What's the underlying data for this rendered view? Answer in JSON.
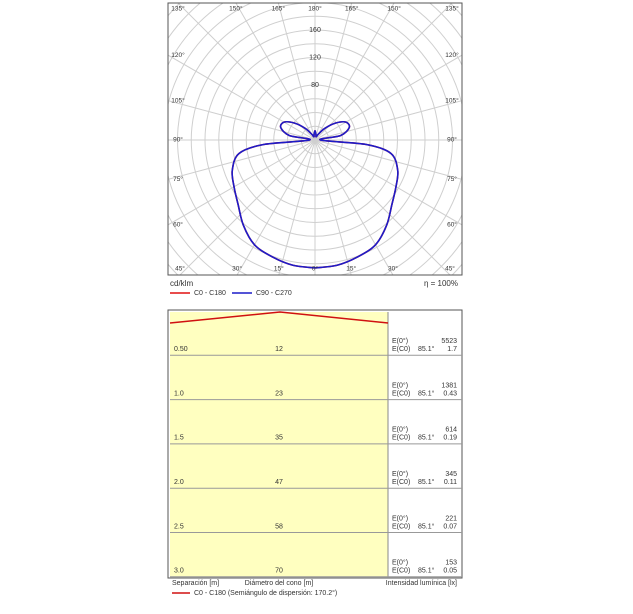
{
  "chart_data": {
    "type": "polar",
    "unit_label": "cd/klm",
    "efficiency": "η = 100%",
    "angles": [
      0,
      10,
      20,
      30,
      40,
      50,
      60,
      70,
      80,
      85,
      90,
      100,
      110,
      120,
      130,
      140,
      150,
      160,
      170,
      180
    ],
    "angle_ticks": [
      {
        "value": 0,
        "label": "0°"
      },
      {
        "value": 15,
        "label": "15°"
      },
      {
        "value": 30,
        "label": "30°"
      },
      {
        "value": 45,
        "label": "45°"
      },
      {
        "value": 60,
        "label": "60°"
      },
      {
        "value": 75,
        "label": "75°"
      },
      {
        "value": 90,
        "label": "90°"
      },
      {
        "value": 105,
        "label": "105°"
      },
      {
        "value": 120,
        "label": "120°"
      },
      {
        "value": 135,
        "label": "135°"
      },
      {
        "value": 150,
        "label": "150°"
      },
      {
        "value": 165,
        "label": "165°"
      },
      {
        "value": 180,
        "label": "180°"
      }
    ],
    "rlim": [
      0,
      200
    ],
    "rticks": [
      80,
      120,
      160
    ],
    "rgrid": [
      20,
      40,
      60,
      80,
      100,
      120,
      140,
      160,
      180,
      200,
      220,
      240,
      260,
      280
    ],
    "series": [
      {
        "name": "C0 - C180",
        "color": "#e01010",
        "values": [
          186,
          185,
          181,
          176,
          162,
          146,
          136,
          128,
          112,
          75,
          8,
          38,
          53,
          52,
          38,
          22,
          10,
          5,
          8,
          14
        ]
      },
      {
        "name": "C90 - C270",
        "color": "#1c1cc8",
        "values": [
          186,
          185,
          181,
          176,
          162,
          146,
          136,
          128,
          112,
          75,
          8,
          38,
          53,
          52,
          38,
          22,
          10,
          5,
          8,
          14
        ]
      }
    ]
  },
  "cone": {
    "rows": [
      {
        "distance": "0.50",
        "diameter": "12",
        "e0_label": "E(0°)",
        "e0": "5523",
        "ec0_label": "E(C0)",
        "ec0_angle": "85.1°",
        "ec0": "1.7"
      },
      {
        "distance": "1.0",
        "diameter": "23",
        "e0_label": "E(0°)",
        "e0": "1381",
        "ec0_label": "E(C0)",
        "ec0_angle": "85.1°",
        "ec0": "0.43"
      },
      {
        "distance": "1.5",
        "diameter": "35",
        "e0_label": "E(0°)",
        "e0": "614",
        "ec0_label": "E(C0)",
        "ec0_angle": "85.1°",
        "ec0": "0.19"
      },
      {
        "distance": "2.0",
        "diameter": "47",
        "e0_label": "E(0°)",
        "e0": "345",
        "ec0_label": "E(C0)",
        "ec0_angle": "85.1°",
        "ec0": "0.11"
      },
      {
        "distance": "2.5",
        "diameter": "58",
        "e0_label": "E(0°)",
        "e0": "221",
        "ec0_label": "E(C0)",
        "ec0_angle": "85.1°",
        "ec0": "0.07"
      },
      {
        "distance": "3.0",
        "diameter": "70",
        "e0_label": "E(0°)",
        "e0": "153",
        "ec0_label": "E(C0)",
        "ec0_angle": "85.1°",
        "ec0": "0.05"
      }
    ],
    "axis_separation": "Separación [m]",
    "axis_diameter": "Diámetro del cono [m]",
    "axis_intensity": "Intensidad lumínica [lx]",
    "legend": "C0 - C180 (Semiángulo de dispersión: 170.2°)"
  }
}
